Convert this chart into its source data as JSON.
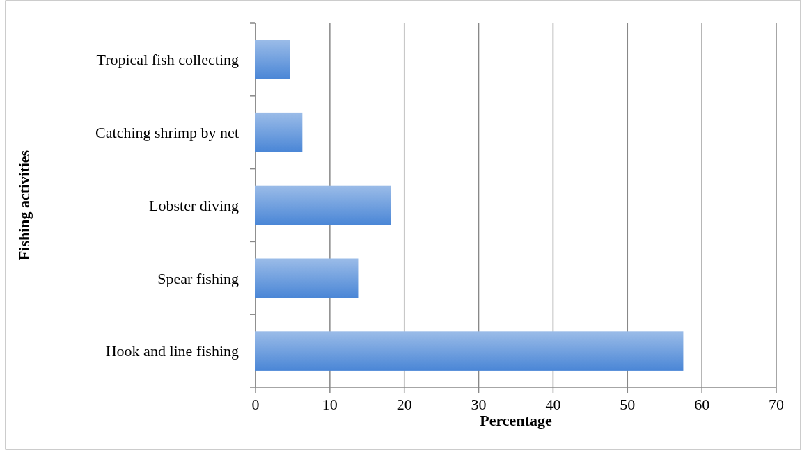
{
  "chart_data": {
    "type": "bar",
    "orientation": "horizontal",
    "xlabel": "Percentage",
    "ylabel": "Fishing activities",
    "categories": [
      "Tropical fish collecting",
      "Catching shrimp by net",
      "Lobster diving",
      "Spear fishing",
      "Hook and line fishing"
    ],
    "values": [
      4.6,
      6.3,
      18.2,
      13.8,
      57.5
    ],
    "color": "#4a86d6",
    "xlim": [
      0,
      70
    ],
    "xticks": [
      0,
      10,
      20,
      30,
      40,
      50,
      60,
      70
    ],
    "grid": "x"
  }
}
